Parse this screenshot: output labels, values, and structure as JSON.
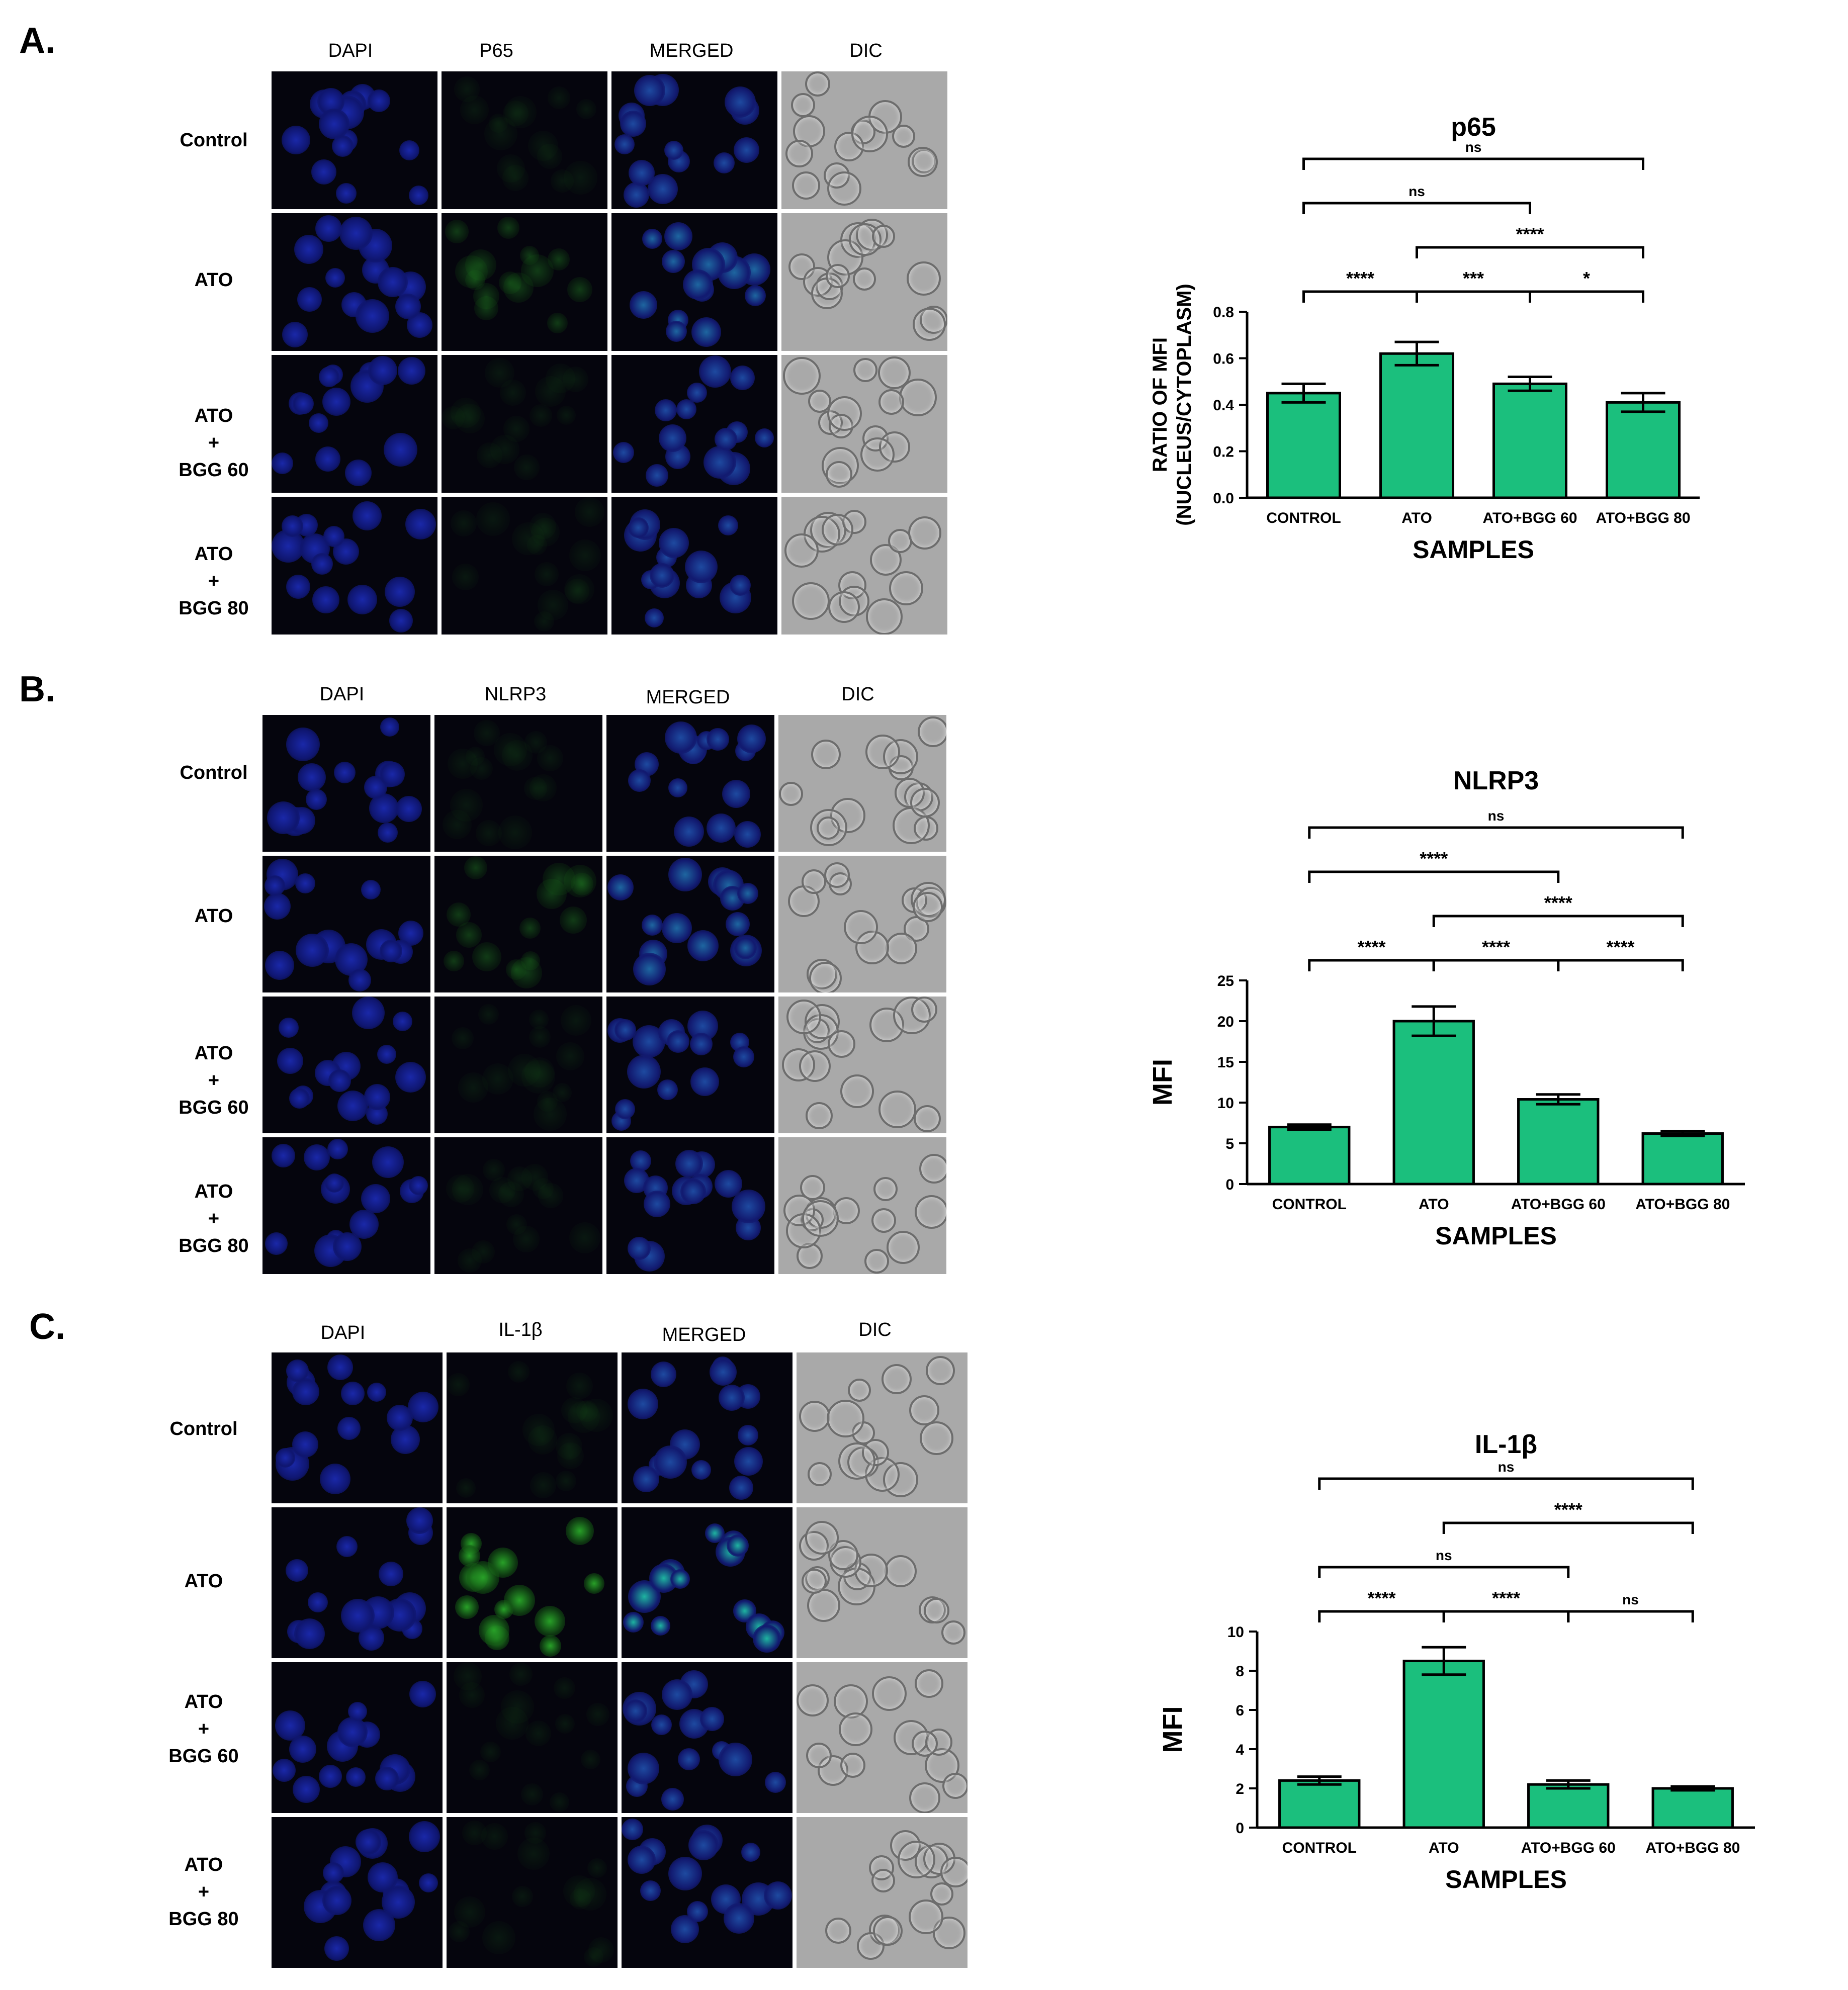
{
  "panels": [
    {
      "letter": "A.",
      "columns": [
        "DAPI",
        "P65",
        "MERGED",
        "DIC"
      ],
      "rows": [
        {
          "lines": [
            "Control"
          ]
        },
        {
          "lines": [
            "ATO"
          ]
        },
        {
          "lines": [
            "ATO",
            "+",
            "BGG 60"
          ]
        },
        {
          "lines": [
            "ATO",
            "+",
            "BGG 80"
          ]
        }
      ]
    },
    {
      "letter": "B.",
      "columns": [
        "DAPI",
        "NLRP3",
        "MERGED",
        "DIC"
      ],
      "rows": [
        {
          "lines": [
            "Control"
          ]
        },
        {
          "lines": [
            "ATO"
          ]
        },
        {
          "lines": [
            "ATO",
            "+",
            "BGG 60"
          ]
        },
        {
          "lines": [
            "ATO",
            "+",
            "BGG 80"
          ]
        }
      ]
    },
    {
      "letter": "C.",
      "columns": [
        "DAPI",
        "IL-1β",
        "MERGED",
        "DIC"
      ],
      "rows": [
        {
          "lines": [
            "Control"
          ]
        },
        {
          "lines": [
            "ATO"
          ]
        },
        {
          "lines": [
            "ATO",
            "+",
            "BGG 60"
          ]
        },
        {
          "lines": [
            "ATO",
            "+",
            "BGG 80"
          ]
        }
      ]
    }
  ],
  "chart_data": [
    {
      "type": "bar",
      "title": "p65",
      "xlabel": "SAMPLES",
      "ylabel": "RATIO OF MFI (NUCLEUS/CYTOPLASM)",
      "ylabel_lines": [
        "RATIO OF MFI",
        "(NUCLEUS/CYTOPLASM)"
      ],
      "categories": [
        "CONTROL",
        "ATO",
        "ATO+BGG 60",
        "ATO+BGG 80"
      ],
      "values": [
        0.45,
        0.62,
        0.49,
        0.41
      ],
      "errors": [
        0.04,
        0.05,
        0.03,
        0.04
      ],
      "ylim": [
        0,
        0.8
      ],
      "yticks": [
        "0.0",
        "0.2",
        "0.4",
        "0.6",
        "0.8"
      ],
      "bar_color": "#1bbf7d",
      "significance": [
        {
          "from": 0,
          "to": 3,
          "label": "ns"
        },
        {
          "from": 1,
          "to": 3,
          "label": "****"
        },
        {
          "from": 0,
          "to": 2,
          "label": "ns"
        },
        {
          "from": 0,
          "to": 1,
          "label": "****"
        },
        {
          "from": 1,
          "to": 2,
          "label": "***"
        },
        {
          "from": 2,
          "to": 3,
          "label": "*"
        }
      ]
    },
    {
      "type": "bar",
      "title": "NLRP3",
      "xlabel": "SAMPLES",
      "ylabel": "MFI",
      "ylabel_lines": [
        "MFI"
      ],
      "categories": [
        "CONTROL",
        "ATO",
        "ATO+BGG 60",
        "ATO+BGG 80"
      ],
      "values": [
        7.0,
        20.0,
        10.4,
        6.2
      ],
      "errors": [
        0.3,
        1.8,
        0.6,
        0.3
      ],
      "ylim": [
        0,
        25
      ],
      "yticks": [
        "0",
        "5",
        "10",
        "15",
        "20",
        "25"
      ],
      "bar_color": "#1bbf7d",
      "significance": [
        {
          "from": 0,
          "to": 3,
          "label": "ns"
        },
        {
          "from": 1,
          "to": 3,
          "label": "****"
        },
        {
          "from": 0,
          "to": 2,
          "label": "****"
        },
        {
          "from": 0,
          "to": 1,
          "label": "****"
        },
        {
          "from": 1,
          "to": 2,
          "label": "****"
        },
        {
          "from": 2,
          "to": 3,
          "label": "****"
        }
      ]
    },
    {
      "type": "bar",
      "title": "IL-1β",
      "xlabel": "SAMPLES",
      "ylabel": "MFI",
      "ylabel_lines": [
        "MFI"
      ],
      "categories": [
        "CONTROL",
        "ATO",
        "ATO+BGG 60",
        "ATO+BGG 80"
      ],
      "values": [
        2.4,
        8.5,
        2.2,
        2.0
      ],
      "errors": [
        0.2,
        0.7,
        0.2,
        0.1
      ],
      "ylim": [
        0,
        10
      ],
      "yticks": [
        "0",
        "2",
        "4",
        "6",
        "8",
        "10"
      ],
      "bar_color": "#1bbf7d",
      "significance": [
        {
          "from": 0,
          "to": 3,
          "label": "ns"
        },
        {
          "from": 0,
          "to": 2,
          "label": "ns"
        },
        {
          "from": 1,
          "to": 3,
          "label": "****"
        },
        {
          "from": 0,
          "to": 1,
          "label": "****"
        },
        {
          "from": 1,
          "to": 2,
          "label": "****"
        },
        {
          "from": 2,
          "to": 3,
          "label": "ns"
        }
      ]
    }
  ]
}
